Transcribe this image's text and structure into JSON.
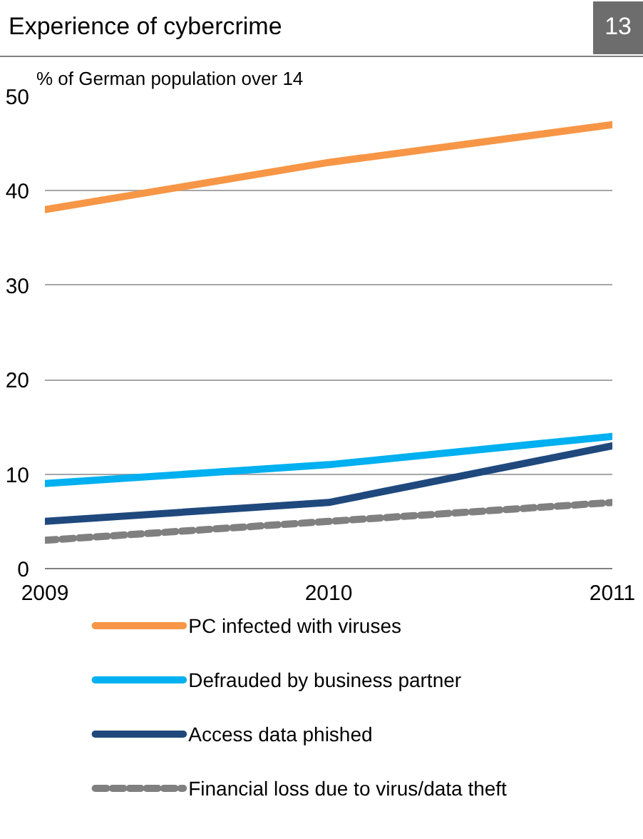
{
  "chart_data": {
    "type": "line",
    "title": "Experience of cybercrime",
    "subtitle": "% of German population over 14",
    "annotations": [
      "13"
    ],
    "x": [
      2009,
      2010,
      2011
    ],
    "xlim": [
      2009,
      2011
    ],
    "xticks": [
      2009,
      2010,
      2011
    ],
    "ylim": [
      0,
      50
    ],
    "yticks": [
      0,
      10,
      20,
      30,
      40,
      50
    ],
    "grid": "y",
    "legend": "bottom",
    "marker": "none",
    "series": [
      {
        "name": "PC infected with viruses",
        "color": "#f79646",
        "values": [
          38,
          43,
          47
        ],
        "line_style": "solid"
      },
      {
        "name": "Defrauded by business partner",
        "color": "#00b0f0",
        "values": [
          9,
          11,
          14
        ],
        "line_style": "solid"
      },
      {
        "name": "Access data phished",
        "color": "#1f497d",
        "values": [
          5,
          7,
          13
        ],
        "line_style": "solid"
      },
      {
        "name": "Financial loss due to virus/data theft",
        "color": "#808080",
        "values": [
          3,
          5,
          7
        ],
        "line_style": "dashed"
      }
    ]
  }
}
